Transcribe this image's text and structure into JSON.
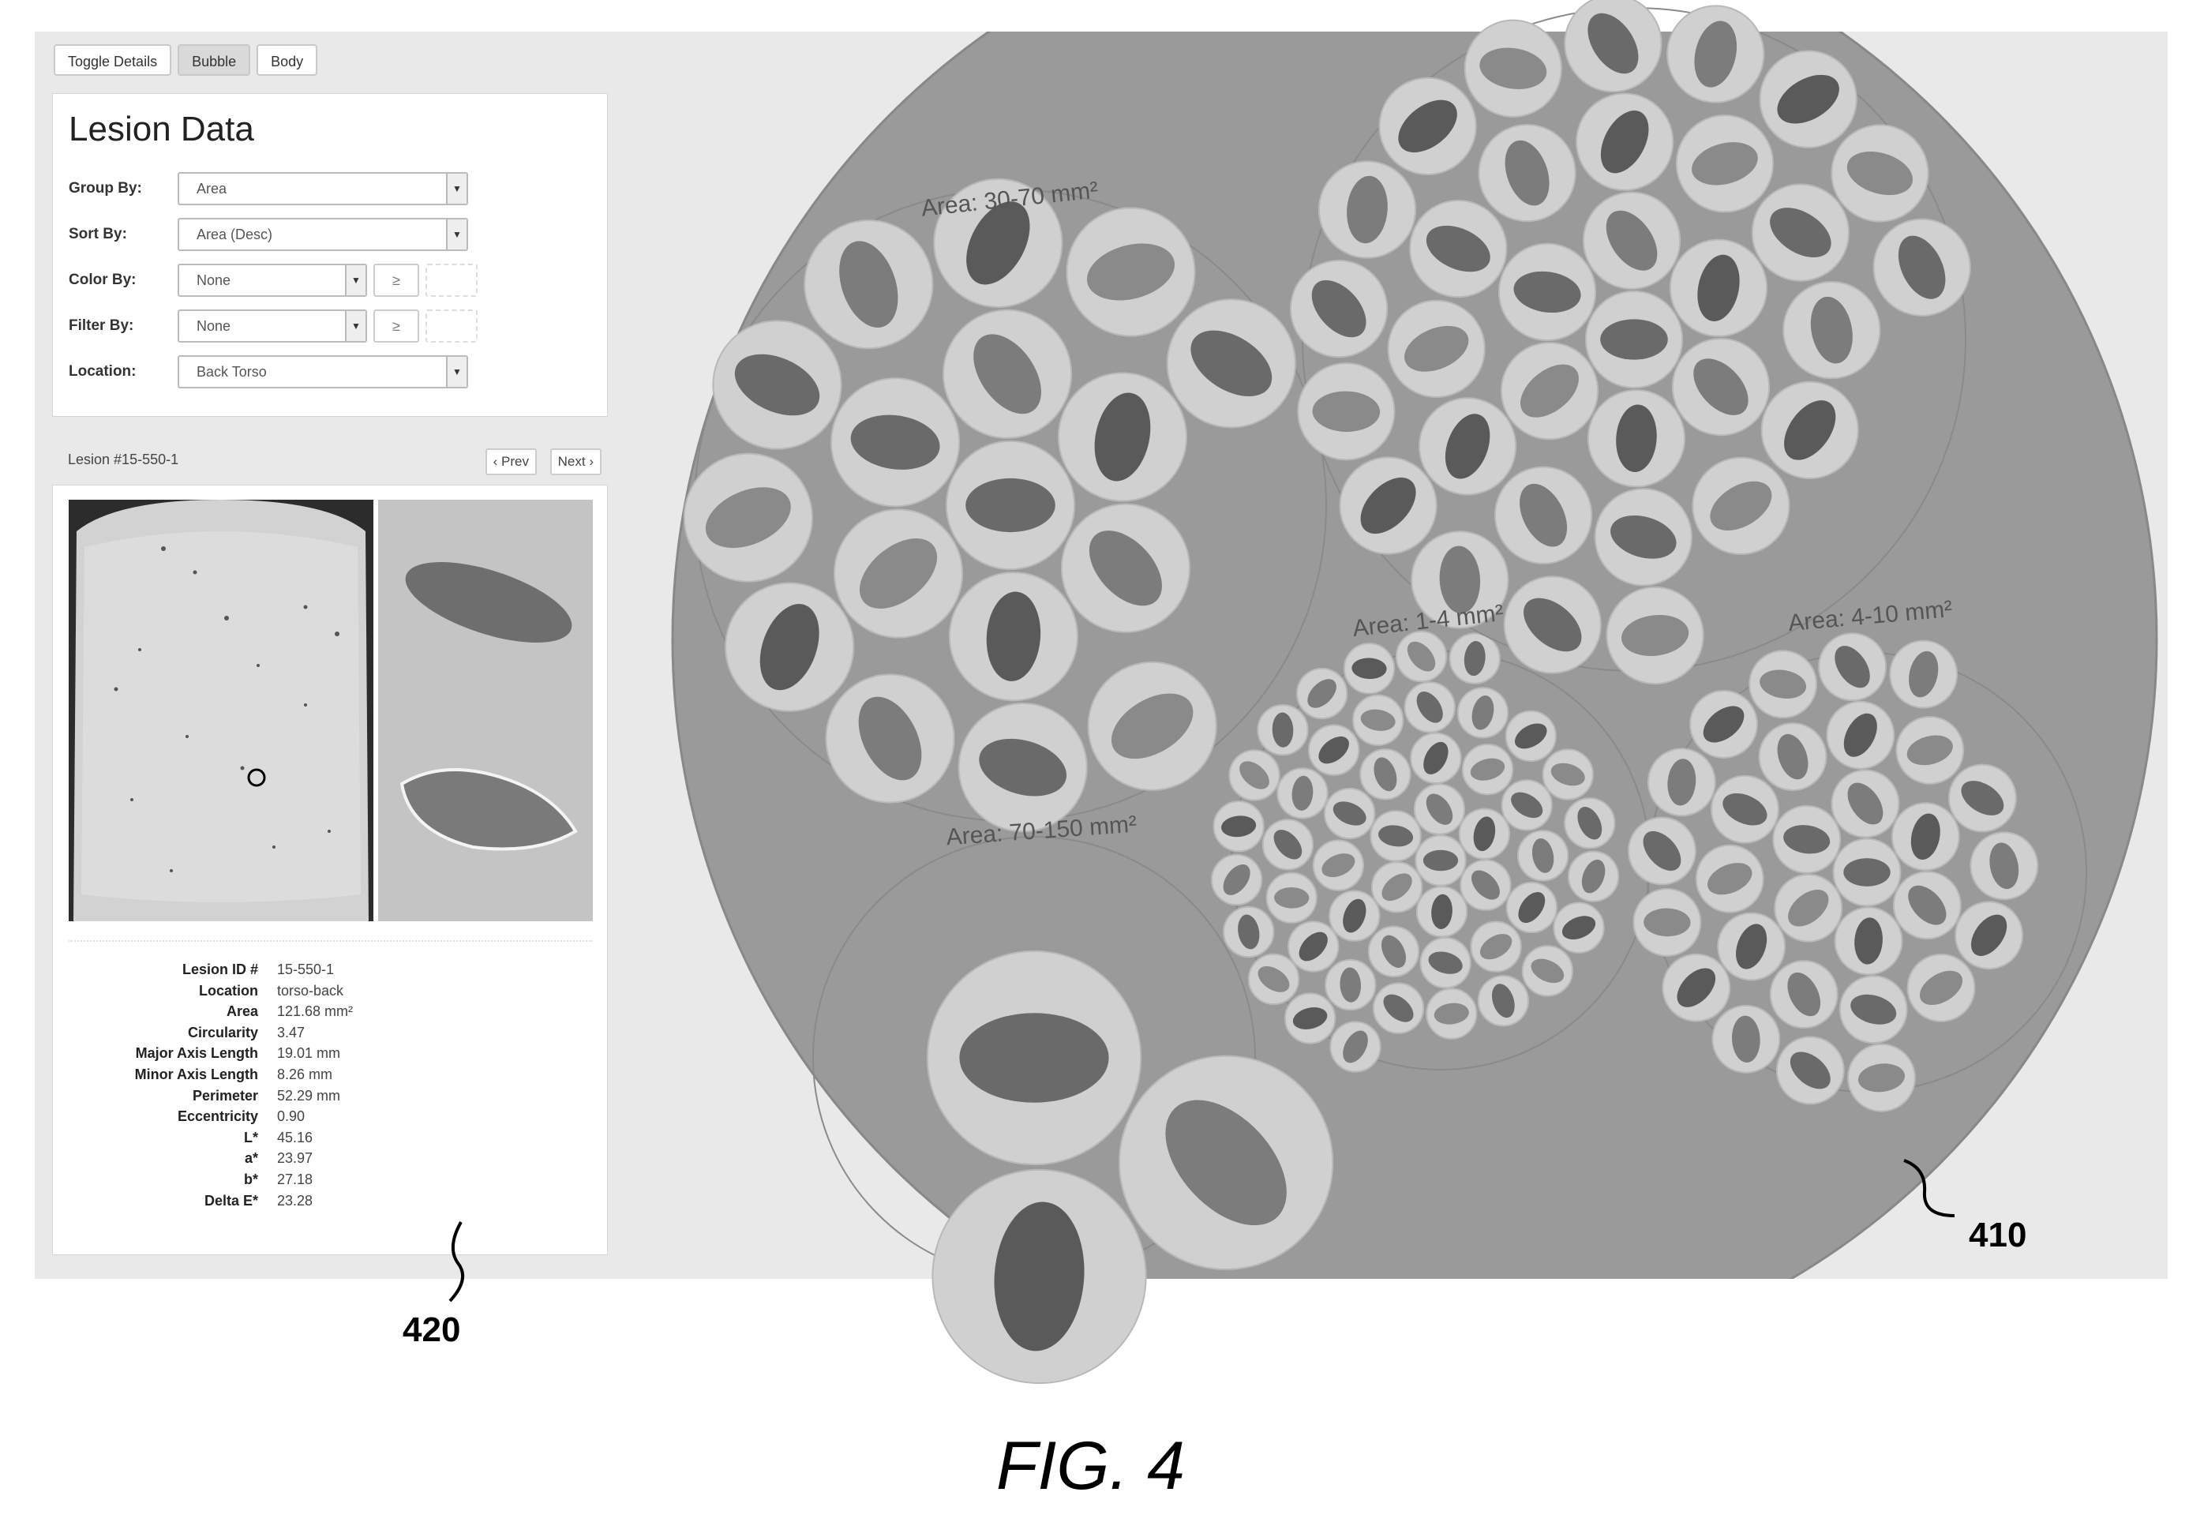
{
  "toolbar": {
    "toggle_label": "Toggle Details",
    "bubble_label": "Bubble",
    "body_label": "Body"
  },
  "lesion_data": {
    "title": "Lesion Data",
    "group_by": {
      "label": "Group By:",
      "value": "Area"
    },
    "sort_by": {
      "label": "Sort By:",
      "value": "Area (Desc)"
    },
    "color_by": {
      "label": "Color By:",
      "value": "None",
      "op": "≥"
    },
    "filter_by": {
      "label": "Filter By:",
      "value": "None",
      "op": "≥"
    },
    "location": {
      "label": "Location:",
      "value": "Back Torso"
    }
  },
  "detail": {
    "title": "Lesion #15-550-1",
    "prev_label": "‹ Prev",
    "next_label": "Next ›",
    "stats": [
      {
        "key": "Lesion ID #",
        "value": "15-550-1"
      },
      {
        "key": "Location",
        "value": "torso-back"
      },
      {
        "key": "Area",
        "value": "121.68 mm²"
      },
      {
        "key": "Circularity",
        "value": "3.47"
      },
      {
        "key": "Major Axis Length",
        "value": "19.01 mm"
      },
      {
        "key": "Minor Axis Length",
        "value": "8.26 mm"
      },
      {
        "key": "Perimeter",
        "value": "52.29 mm"
      },
      {
        "key": "Eccentricity",
        "value": "0.90"
      },
      {
        "key": "L*",
        "value": "45.16"
      },
      {
        "key": "a*",
        "value": "23.97"
      },
      {
        "key": "b*",
        "value": "27.18"
      },
      {
        "key": "Delta E*",
        "value": "23.28"
      }
    ]
  },
  "bubbles": {
    "groups": [
      {
        "label": "Area: 30-70 mm²",
        "count": 17
      },
      {
        "label": "Area: 70-150 mm²",
        "count": 3
      },
      {
        "label": "Area: 1-4 mm²",
        "count": 49
      },
      {
        "label": "Area: 4-10 mm²",
        "count": 30
      },
      {
        "label": "",
        "count": 33
      }
    ]
  },
  "annotations": {
    "ref_410": "410",
    "ref_420": "420",
    "figure_caption": "FIG. 4"
  }
}
